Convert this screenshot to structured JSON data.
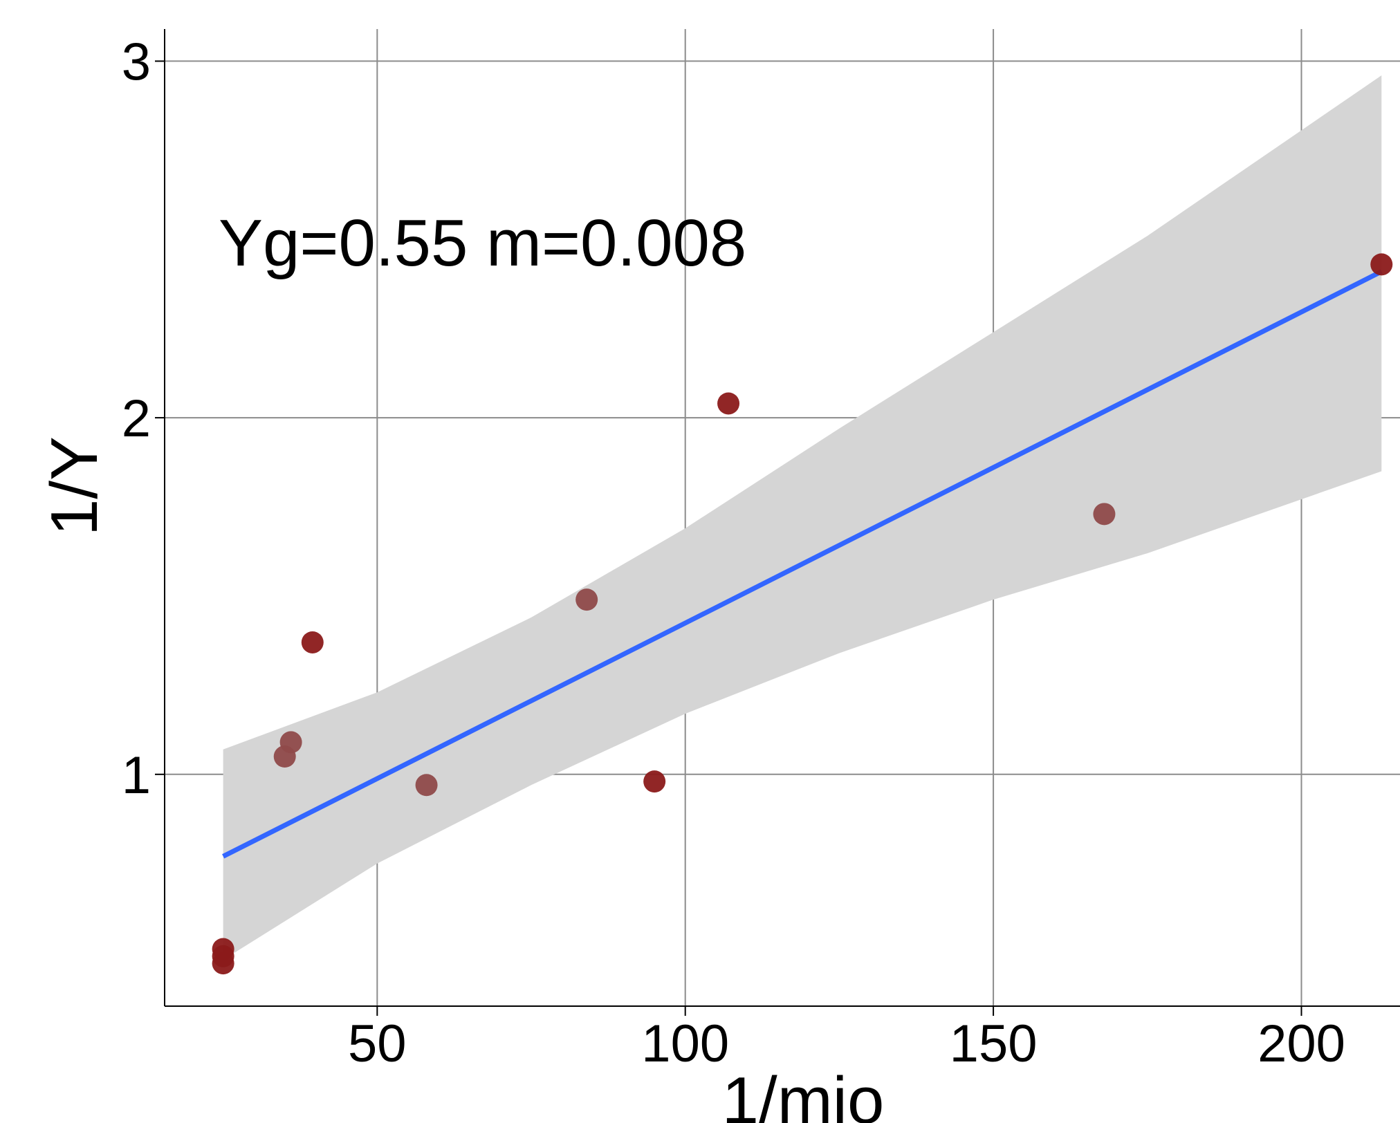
{
  "chart_data": {
    "type": "scatter",
    "title": "",
    "xlabel": "1/mio",
    "ylabel": "1/Y",
    "xlim": [
      15.5,
      216
    ],
    "ylim": [
      0.35,
      3.09
    ],
    "xticks": [
      50,
      100,
      150,
      200
    ],
    "yticks": [
      1,
      2,
      3
    ],
    "grid": true,
    "legend": "none",
    "annotation": "Yg=0.55 m=0.008",
    "points": [
      {
        "x": 25,
        "y": 0.47
      },
      {
        "x": 25,
        "y": 0.49
      },
      {
        "x": 25,
        "y": 0.51
      },
      {
        "x": 35,
        "y": 1.05
      },
      {
        "x": 36,
        "y": 1.09
      },
      {
        "x": 39.5,
        "y": 1.37
      },
      {
        "x": 58,
        "y": 0.97
      },
      {
        "x": 84,
        "y": 1.49
      },
      {
        "x": 95,
        "y": 0.98
      },
      {
        "x": 107,
        "y": 2.04
      },
      {
        "x": 168,
        "y": 1.73
      },
      {
        "x": 213,
        "y": 2.43
      }
    ],
    "fit_line": {
      "x": [
        25,
        213
      ],
      "y": [
        0.77,
        2.41
      ]
    },
    "confidence_band": {
      "x": [
        25,
        50,
        75,
        100,
        125,
        150,
        175,
        213
      ],
      "upper": [
        1.07,
        1.23,
        1.44,
        1.69,
        1.97,
        2.24,
        2.51,
        2.96
      ],
      "lower": [
        0.48,
        0.75,
        0.97,
        1.17,
        1.34,
        1.49,
        1.62,
        1.85
      ]
    },
    "colors": {
      "point_dark": "#8b1a1a",
      "point_light": "#8f4a4a",
      "fit_line": "#3366ff",
      "band": "#d5d5d5",
      "grid": "#8c8c8c"
    }
  }
}
